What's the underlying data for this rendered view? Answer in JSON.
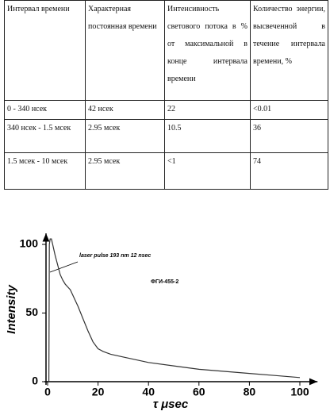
{
  "table": {
    "header": [
      "Интервал времени",
      "Характерная постоянная времени",
      "Интенсивность светового потока в % от максимальной в конце интервала времени",
      "Количество энергии, высвеченной в течение интервала времени, %"
    ],
    "rows": [
      [
        "0 - 340 нсек",
        "42 нсек",
        "22",
        "<0.01"
      ],
      [
        "340 нсек - 1.5 мсек",
        "2.95 мсек",
        "10.5",
        "36"
      ],
      [
        "1.5 мсек - 10 мсек",
        "2.95 мсек",
        "<1",
        "74"
      ]
    ]
  },
  "chart_data": {
    "type": "line",
    "x_label": "τ μsec",
    "y_label": "Intensity",
    "annotations": [
      "laser pulse 193 nm 12 nsec",
      "ФГИ-455-2"
    ],
    "xlim": [
      0,
      107
    ],
    "ylim": [
      0,
      108
    ],
    "xticks": [
      0,
      20,
      40,
      60,
      80,
      100
    ],
    "yticks": [
      0,
      50,
      100
    ],
    "series": [
      {
        "name": "ФГИ-455-2",
        "color": "#333333",
        "x": [
          0.5,
          0.7,
          1,
          1.5,
          2,
          3,
          4,
          5,
          6,
          7,
          8,
          9,
          10,
          12,
          14,
          16,
          18,
          20,
          22,
          25,
          30,
          40,
          50,
          60,
          70,
          80,
          90,
          100
        ],
        "values": [
          0,
          100,
          104,
          104,
          100,
          92,
          85,
          78,
          74,
          71,
          69,
          67,
          63,
          55,
          46,
          37,
          29,
          24,
          22,
          20,
          18,
          14,
          11.5,
          9,
          7.5,
          6,
          4.5,
          3
        ]
      }
    ]
  }
}
